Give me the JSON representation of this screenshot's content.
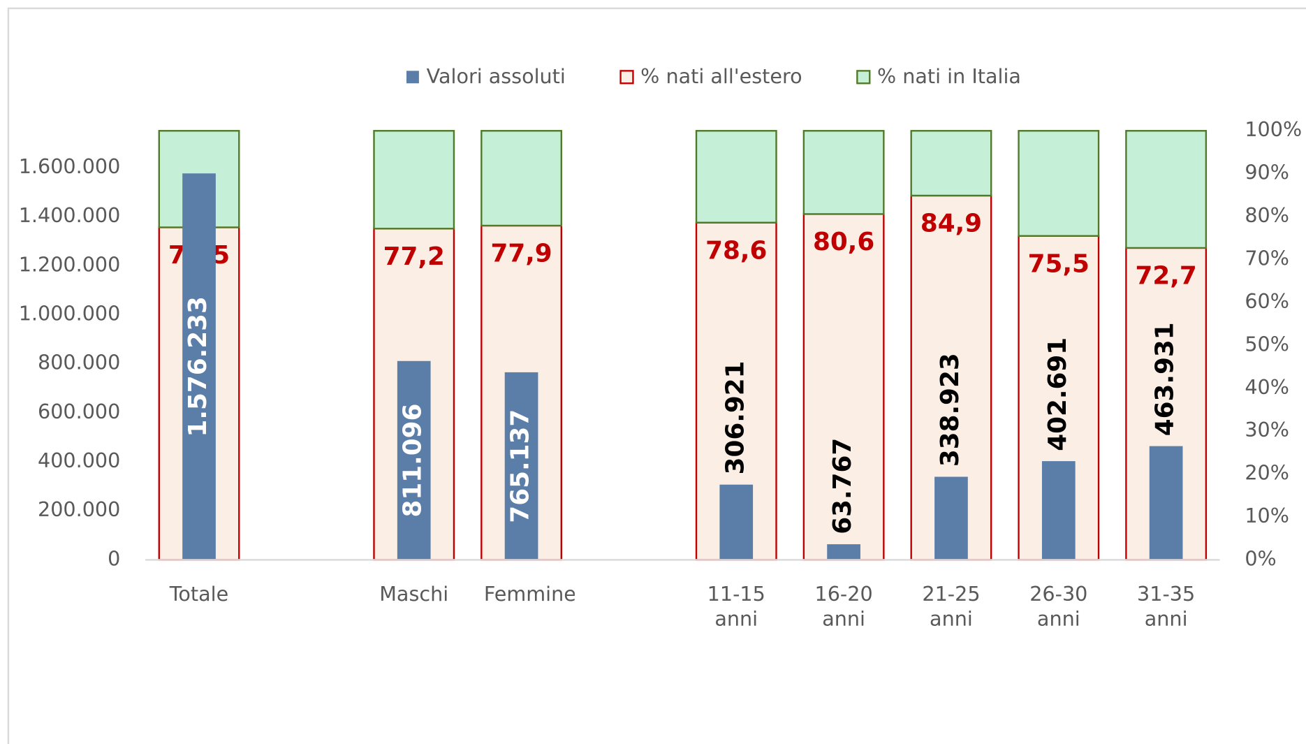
{
  "chart_data": {
    "type": "bar",
    "categories": [
      "Totale",
      null,
      "Maschi",
      "Femmine",
      null,
      "11-15 anni",
      "16-20 anni",
      "21-25 anni",
      "26-30 anni",
      "31-35 anni"
    ],
    "series": [
      {
        "name": "Valori assoluti",
        "color": "#5b7ea9",
        "values": [
          1576233,
          null,
          811096,
          765137,
          null,
          306921,
          63767,
          338923,
          402691,
          463931
        ],
        "value_labels": [
          "1.576.233",
          null,
          "811.096",
          "765.137",
          null,
          "306.921",
          "63.767",
          "338.923",
          "402.691",
          "463.931"
        ]
      },
      {
        "name": "% nati all'estero",
        "color": "#fbeee4",
        "edge": "#c00000",
        "axis": "y2",
        "stack": true,
        "values": [
          77.5,
          null,
          77.2,
          77.9,
          null,
          78.6,
          80.6,
          84.9,
          75.5,
          72.7
        ],
        "value_labels": [
          "77,5",
          null,
          "77,2",
          "77,9",
          null,
          "78,6",
          "80,6",
          "84,9",
          "75,5",
          "72,7"
        ]
      },
      {
        "name": "% nati in Italia",
        "color": "#c6efd8",
        "edge": "#4f7a28",
        "axis": "y2",
        "stack": true,
        "values": [
          22.5,
          null,
          22.8,
          22.1,
          null,
          21.4,
          19.4,
          15.1,
          24.5,
          27.3
        ]
      }
    ],
    "ylim": [
      0,
      1750000
    ],
    "yticks": [
      0,
      {
        "value": 200000,
        "label": "200.000"
      },
      {
        "value": 400000,
        "label": "400.000"
      },
      {
        "value": 600000,
        "label": "600.000"
      },
      {
        "value": 800000,
        "label": "800.000"
      },
      {
        "value": 1000000,
        "label": "1.000.000"
      },
      {
        "value": 1200000,
        "label": "1.200.000"
      },
      {
        "value": 1400000,
        "label": "1.400.000"
      },
      {
        "value": 1600000,
        "label": "1.600.000"
      }
    ],
    "y2lim": [
      0,
      100
    ],
    "y2ticks": [
      {
        "value": 0,
        "label": "0%"
      },
      {
        "value": 10,
        "label": "10%"
      },
      {
        "value": 20,
        "label": "20%"
      },
      {
        "value": 30,
        "label": "30%"
      },
      {
        "value": 40,
        "label": "40%"
      },
      {
        "value": 50,
        "label": "50%"
      },
      {
        "value": 60,
        "label": "60%"
      },
      {
        "value": 70,
        "label": "70%"
      },
      {
        "value": 80,
        "label": "80%"
      },
      {
        "value": 90,
        "label": "90%"
      },
      {
        "value": 100,
        "label": "100%"
      }
    ],
    "legend": "top"
  }
}
